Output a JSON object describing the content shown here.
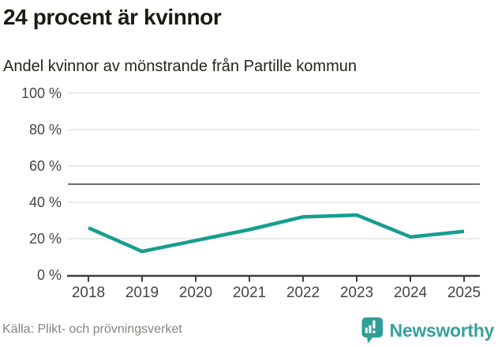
{
  "header": {
    "title": "24 procent är kvinnor",
    "subtitle": "Andel kvinnor av mönstrande från Partille kommun"
  },
  "chart_data": {
    "type": "line",
    "title": "24 procent är kvinnor",
    "subtitle": "Andel kvinnor av mönstrande från Partille kommun",
    "x": [
      "2018",
      "2019",
      "2020",
      "2021",
      "2022",
      "2023",
      "2024",
      "2025"
    ],
    "series": [
      {
        "name": "Andel kvinnor av mönstrande",
        "color": "#169d8f",
        "values": [
          26,
          13,
          19,
          25,
          32,
          33,
          21,
          24
        ]
      }
    ],
    "ylim": [
      0,
      100
    ],
    "yticks": [
      0,
      20,
      40,
      60,
      80,
      100
    ],
    "ytick_suffix": " %",
    "reference_line_y": 50,
    "grid": true,
    "legend": "none",
    "xlabel": "",
    "ylabel": ""
  },
  "footer": {
    "source": "Källa: Plikt- och prövningsverket",
    "brand_name": "Newsworthy",
    "brand_icon": "newsworthy-speech-bubble-bar-chart-icon"
  },
  "colors": {
    "accent": "#169d8f",
    "brand_teal": "#35a19b",
    "grid_line": "#e4e4e4",
    "reference_line": "#6e6e6e",
    "axis": "#3d3d3d",
    "tick_label": "#454545",
    "title_text": "#1a1b14",
    "source_text": "#85847e",
    "background": "#ffffff"
  }
}
